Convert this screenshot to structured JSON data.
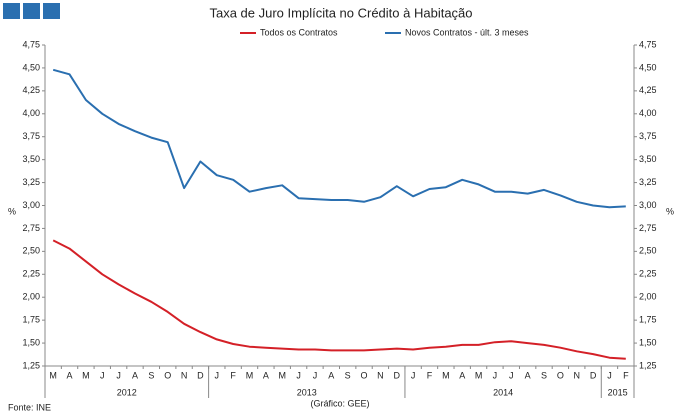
{
  "chart_data": {
    "type": "line",
    "title": "Taxa de Juro Implícita no Crédito à Habitação",
    "y_label": "%",
    "y2_label": "%",
    "source": "Fonte: INE",
    "note": "(Gráfico: GEE)",
    "categories": [
      "M",
      "A",
      "M",
      "J",
      "J",
      "A",
      "S",
      "O",
      "N",
      "D",
      "J",
      "F",
      "M",
      "A",
      "M",
      "J",
      "J",
      "A",
      "S",
      "O",
      "N",
      "D",
      "J",
      "F",
      "M",
      "A",
      "M",
      "J",
      "J",
      "A",
      "S",
      "O",
      "N",
      "D",
      "J",
      "F"
    ],
    "x_group_labels": [
      "2012",
      null,
      null,
      null,
      null,
      null,
      null,
      null,
      null,
      null,
      "2013",
      null,
      null,
      null,
      null,
      null,
      null,
      null,
      null,
      null,
      null,
      null,
      "2014",
      null,
      null,
      null,
      null,
      null,
      null,
      null,
      null,
      null,
      null,
      null,
      "2015",
      null
    ],
    "series": [
      {
        "name": "Todos os Contratos",
        "color": "#d42027",
        "values": [
          2.62,
          2.53,
          2.39,
          2.25,
          2.14,
          2.04,
          1.95,
          1.84,
          1.71,
          1.62,
          1.54,
          1.49,
          1.46,
          1.45,
          1.44,
          1.43,
          1.43,
          1.42,
          1.42,
          1.42,
          1.43,
          1.44,
          1.43,
          1.45,
          1.46,
          1.48,
          1.48,
          1.51,
          1.52,
          1.5,
          1.48,
          1.45,
          1.41,
          1.38,
          1.34,
          1.33
        ]
      },
      {
        "name": "Novos Contratos - últ. 3 meses",
        "color": "#2a6fb0",
        "values": [
          4.48,
          4.43,
          4.15,
          4.0,
          3.89,
          3.81,
          3.74,
          3.69,
          3.19,
          3.48,
          3.33,
          3.28,
          3.15,
          3.19,
          3.22,
          3.08,
          3.07,
          3.06,
          3.06,
          3.04,
          3.09,
          3.21,
          3.1,
          3.18,
          3.2,
          3.28,
          3.23,
          3.15,
          3.15,
          3.13,
          3.17,
          3.11,
          3.04,
          3.0,
          2.98,
          2.99
        ]
      }
    ],
    "ylim": [
      1.25,
      4.75
    ],
    "yticks": [
      {
        "value": 1.25,
        "label": "1,25"
      },
      {
        "value": 1.5,
        "label": "1,50"
      },
      {
        "value": 1.75,
        "label": "1,75"
      },
      {
        "value": 2,
        "label": "2,00"
      },
      {
        "value": 2.25,
        "label": "2,25"
      },
      {
        "value": 2.5,
        "label": "2,50"
      },
      {
        "value": 2.75,
        "label": "2,75"
      },
      {
        "value": 3,
        "label": "3,00"
      },
      {
        "value": 3.25,
        "label": "3,25"
      },
      {
        "value": 3.5,
        "label": "3,50"
      },
      {
        "value": 3.75,
        "label": "3,75"
      },
      {
        "value": 4,
        "label": "4,00"
      },
      {
        "value": 4.25,
        "label": "4,25"
      },
      {
        "value": 4.5,
        "label": "4,50"
      },
      {
        "value": 4.75,
        "label": "4,75"
      }
    ],
    "y2lim": [
      1.25,
      4.75
    ],
    "y2ticks": [
      {
        "value": 1.25,
        "label": "1,25"
      },
      {
        "value": 1.5,
        "label": "1,50"
      },
      {
        "value": 1.75,
        "label": "1,75"
      },
      {
        "value": 2,
        "label": "2,00"
      },
      {
        "value": 2.25,
        "label": "2,25"
      },
      {
        "value": 2.5,
        "label": "2,50"
      },
      {
        "value": 2.75,
        "label": "2,75"
      },
      {
        "value": 3,
        "label": "3,00"
      },
      {
        "value": 3.25,
        "label": "3,25"
      },
      {
        "value": 3.5,
        "label": "3,50"
      },
      {
        "value": 3.75,
        "label": "3,75"
      },
      {
        "value": 4,
        "label": "4,00"
      },
      {
        "value": 4.25,
        "label": "4,25"
      },
      {
        "value": 4.5,
        "label": "4,50"
      },
      {
        "value": 4.75,
        "label": "4,75"
      }
    ],
    "grid": false,
    "legend": "top"
  }
}
